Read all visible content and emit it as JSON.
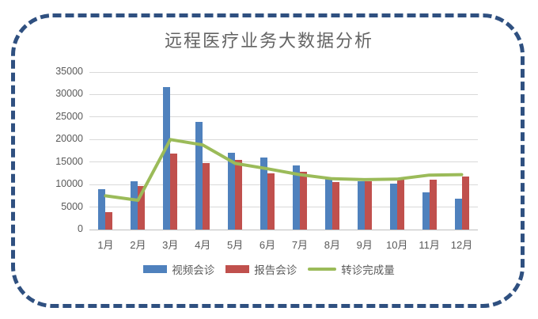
{
  "chart_data": {
    "type": "bar",
    "title": "远程医疗业务大数据分析",
    "categories": [
      "1月",
      "2月",
      "3月",
      "4月",
      "5月",
      "6月",
      "7月",
      "8月",
      "9月",
      "10月",
      "11月",
      "12月"
    ],
    "series": [
      {
        "name": "视频会诊",
        "type": "bar",
        "color": "#4f81bd",
        "values": [
          8900,
          10800,
          31700,
          24000,
          17100,
          16000,
          14300,
          11300,
          10800,
          10200,
          8200,
          6900
        ]
      },
      {
        "name": "报告会诊",
        "type": "bar",
        "color": "#c0504d",
        "values": [
          3800,
          9700,
          16800,
          14800,
          15500,
          12400,
          12900,
          10500,
          10800,
          11000,
          11100,
          11700
        ]
      },
      {
        "name": "转诊完成量",
        "type": "line",
        "color": "#9bbb59",
        "values": [
          7500,
          6500,
          20000,
          18800,
          14700,
          13500,
          12200,
          11300,
          11100,
          11200,
          12100,
          12200
        ]
      }
    ],
    "ylim": [
      0,
      35000
    ],
    "ytick_step": 5000,
    "yticks": [
      "0",
      "5000",
      "10000",
      "15000",
      "20000",
      "25000",
      "30000",
      "35000"
    ],
    "grid": true,
    "legend_position": "bottom",
    "xlabel": "",
    "ylabel": ""
  },
  "frame": {
    "border_color": "#2f5080",
    "background": "#ffffff",
    "text_color": "#595959",
    "gridline_color": "#d9d9d9"
  }
}
